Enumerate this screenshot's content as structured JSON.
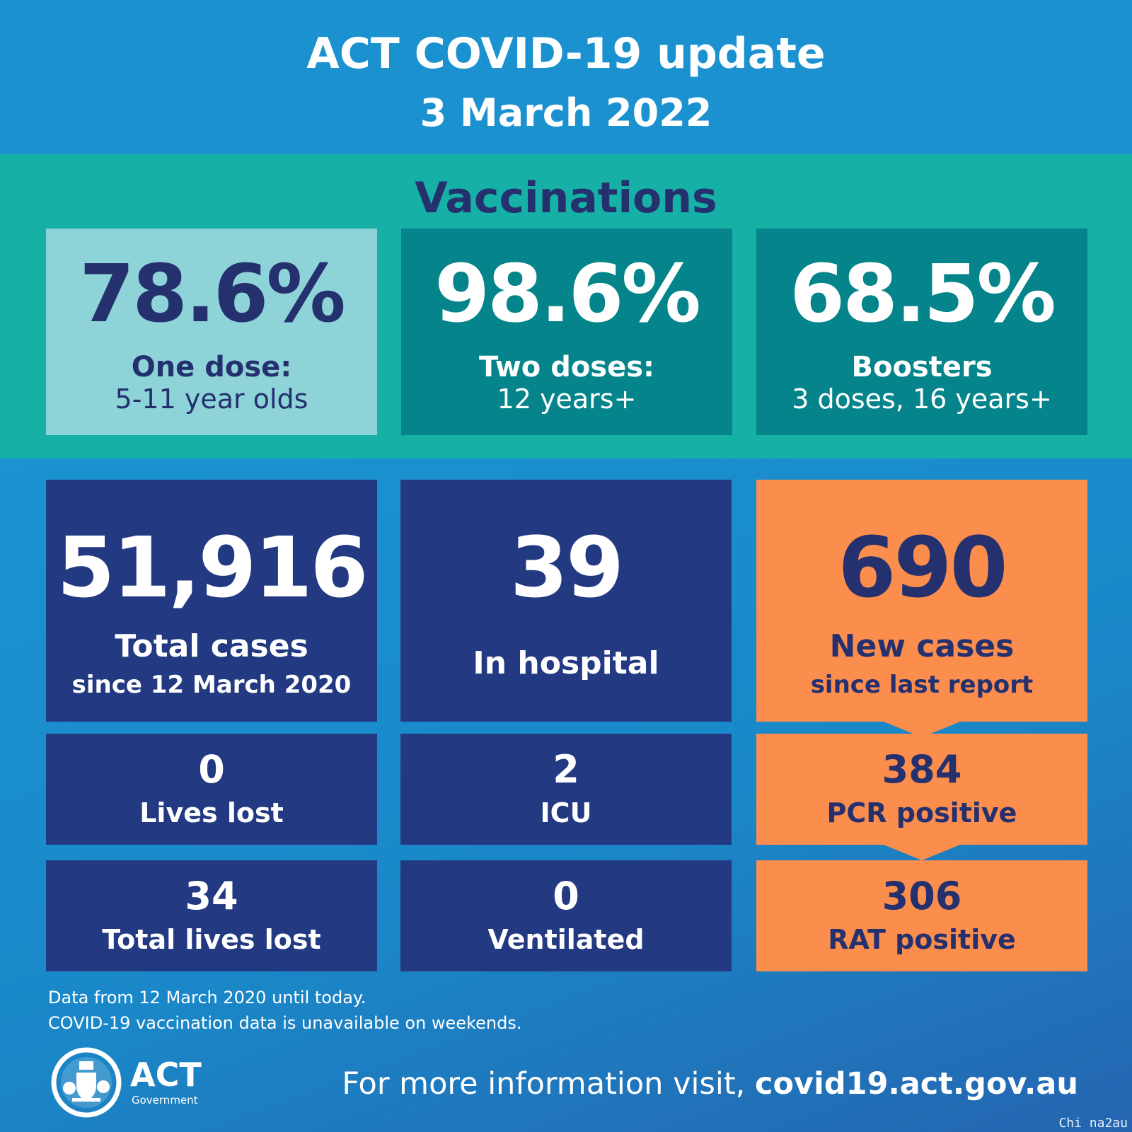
{
  "header": {
    "title": "ACT COVID-19 update",
    "date": "3 March 2022"
  },
  "vaccinations": {
    "heading": "Vaccinations",
    "cards": [
      {
        "value": "78.6%",
        "label_bold": "One dose:",
        "label": "5-11 year olds"
      },
      {
        "value": "98.6%",
        "label_bold": "Two doses:",
        "label": "12 years+"
      },
      {
        "value": "68.5%",
        "label_bold": "Boosters",
        "label": "3 doses, 16 years+"
      }
    ]
  },
  "stats": {
    "total_cases": {
      "value": "51,916",
      "label": "Total cases",
      "sublabel": "since 12 March 2020"
    },
    "hospital": {
      "value": "39",
      "label": "In hospital"
    },
    "new_cases": {
      "value": "690",
      "label": "New cases",
      "sublabel": "since last report"
    },
    "lives_lost": {
      "value": "0",
      "label": "Lives lost"
    },
    "icu": {
      "value": "2",
      "label": "ICU"
    },
    "pcr": {
      "value": "384",
      "label": "PCR positive"
    },
    "total_lives_lost": {
      "value": "34",
      "label": "Total lives lost"
    },
    "ventilated": {
      "value": "0",
      "label": "Ventilated"
    },
    "rat": {
      "value": "306",
      "label": "RAT positive"
    }
  },
  "notes": {
    "line1": "Data from 12 March 2020 until today.",
    "line2": "COVID-19 vaccination data is unavailable on weekends."
  },
  "footer": {
    "logo_text": "ACT",
    "logo_subtext": "Government",
    "info_prefix": "For more information visit, ",
    "info_url": "covid19.act.gov.au"
  },
  "watermark": "Chi na2au",
  "colors": {
    "header_bg": "#1b91cf",
    "vax_bg": "#16b0a7",
    "navy": "#233981",
    "orange": "#fb8d4d",
    "teal_dark": "#05858b",
    "teal_light": "#8ed3d8",
    "text_navy": "#25306f"
  }
}
